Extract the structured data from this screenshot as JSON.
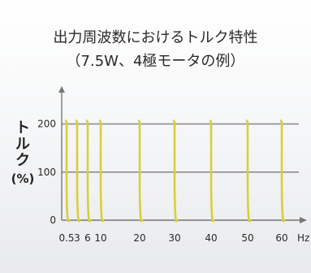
{
  "chart_data": {
    "type": "line",
    "title_line1": "出力周波数におけるトルク特性",
    "title_line2": "（7.5W、4極モータの例）",
    "ylabel_text": "トルク",
    "ylabel_unit": "(%)",
    "x_unit": "Hz",
    "x_ticks": [
      {
        "label": "0.5"
      },
      {
        "label": "3"
      },
      {
        "label": "6"
      },
      {
        "label": "10"
      },
      {
        "label": "20"
      },
      {
        "label": "30"
      },
      {
        "label": "40"
      },
      {
        "label": "50"
      },
      {
        "label": "60"
      }
    ],
    "y_ticks": [
      0,
      100,
      200
    ],
    "ylim": [
      0,
      260
    ],
    "gridlines_y": [
      100,
      200
    ],
    "series_color": "#d8cf3a",
    "curves": [
      {
        "freq": "0.5"
      },
      {
        "freq": "3"
      },
      {
        "freq": "6"
      },
      {
        "freq": "10"
      },
      {
        "freq": "20"
      },
      {
        "freq": "30"
      },
      {
        "freq": "40"
      },
      {
        "freq": "50"
      },
      {
        "freq": "60"
      }
    ]
  }
}
